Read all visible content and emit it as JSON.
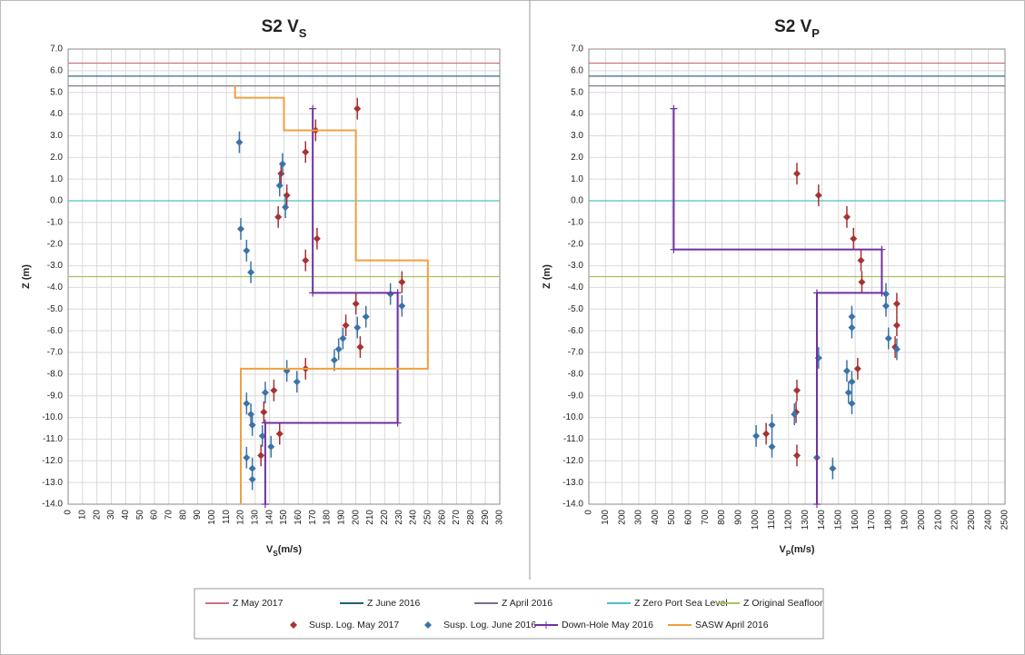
{
  "chart_data": [
    {
      "type": "scatter",
      "title": [
        "S2 V",
        "S"
      ],
      "xlabel": [
        "V",
        "S",
        "(m/s)"
      ],
      "ylabel": "Z (m)",
      "xlim": [
        0,
        300
      ],
      "ylim": [
        -14,
        7
      ],
      "grid": true,
      "legend": "bottom",
      "xticks": [
        0,
        10,
        20,
        30,
        40,
        50,
        60,
        70,
        80,
        90,
        100,
        110,
        120,
        130,
        140,
        150,
        160,
        170,
        180,
        190,
        200,
        210,
        220,
        230,
        240,
        250,
        260,
        270,
        280,
        290,
        300
      ],
      "yticks": [
        {
          "value": 7,
          "label": "7.0"
        },
        {
          "value": 6,
          "label": "6.0"
        },
        {
          "value": 5,
          "label": "5.0"
        },
        {
          "value": 4,
          "label": "4.0"
        },
        {
          "value": 3,
          "label": "3.0"
        },
        {
          "value": 2,
          "label": "2.0"
        },
        {
          "value": 1,
          "label": "1.0"
        },
        {
          "value": 0,
          "label": "0.0"
        },
        {
          "value": -1,
          "label": "-1.0"
        },
        {
          "value": -2,
          "label": "-2.0"
        },
        {
          "value": -3,
          "label": "-3.0"
        },
        {
          "value": -4,
          "label": "-4.0"
        },
        {
          "value": -5,
          "label": "-5.0"
        },
        {
          "value": -6,
          "label": "-6.0"
        },
        {
          "value": -7,
          "label": "-7.0"
        },
        {
          "value": -8,
          "label": "-8.0"
        },
        {
          "value": -9,
          "label": "-9.0"
        },
        {
          "value": -10,
          "label": "-10.0"
        },
        {
          "value": -11,
          "label": "-11.0"
        },
        {
          "value": -12,
          "label": "-12.0"
        },
        {
          "value": -13,
          "label": "-13.0"
        },
        {
          "value": -14,
          "label": "-14.0"
        }
      ],
      "series": [
        {
          "name": "Z May 2017",
          "color": "#c9737f",
          "style": "line",
          "x": [
            0,
            300
          ],
          "values": [
            6.35,
            6.35
          ]
        },
        {
          "name": "Z June 2016",
          "color": "#1f5f7a",
          "style": "line",
          "x": [
            0,
            300
          ],
          "values": [
            5.75,
            5.75
          ]
        },
        {
          "name": "Z April 2016",
          "color": "#7f6a8a",
          "style": "line",
          "x": [
            0,
            300
          ],
          "values": [
            5.3,
            5.3
          ]
        },
        {
          "name": "Z Zero Port Sea Level",
          "color": "#4bc0c8",
          "style": "line",
          "x": [
            0,
            300
          ],
          "values": [
            0,
            0
          ]
        },
        {
          "name": "Z Original Seafloor",
          "color": "#a8c060",
          "style": "line",
          "x": [
            0,
            300
          ],
          "values": [
            -3.5,
            -3.5
          ]
        },
        {
          "name": "Susp. Log. May 2017",
          "color": "#a83232",
          "style": "markers",
          "marker": "diamond",
          "error": 0.5,
          "x": [
            201,
            172,
            165,
            148,
            152,
            146,
            173,
            165,
            232,
            200,
            193,
            203,
            165,
            143,
            136,
            147,
            134
          ],
          "values": [
            4.25,
            3.25,
            2.25,
            1.25,
            0.25,
            -0.75,
            -1.75,
            -2.75,
            -3.75,
            -4.75,
            -5.75,
            -6.75,
            -7.75,
            -8.75,
            -9.75,
            -10.75,
            -11.75
          ]
        },
        {
          "name": "Susp. Log. June 2016",
          "color": "#3b73a8",
          "style": "markers",
          "marker": "diamond",
          "error": 0.5,
          "x": [
            119,
            149,
            147,
            151,
            120,
            124,
            127,
            224,
            232,
            207,
            201,
            191,
            188,
            185,
            152,
            159,
            137,
            124,
            127,
            128,
            135,
            141,
            124,
            128,
            128
          ],
          "values": [
            2.7,
            1.7,
            0.7,
            -0.3,
            -1.3,
            -2.3,
            -3.3,
            -4.3,
            -4.85,
            -5.35,
            -5.85,
            -6.35,
            -6.85,
            -7.35,
            -7.85,
            -8.35,
            -8.85,
            -9.35,
            -9.85,
            -10.35,
            -10.85,
            -11.35,
            -11.85,
            -12.35,
            -12.85
          ]
        },
        {
          "name": "Down-Hole May 2016",
          "color": "#7030a0",
          "style": "line+markers",
          "marker": "plus",
          "x": [
            170,
            170,
            229,
            229,
            137,
            137
          ],
          "values": [
            4.25,
            -4.25,
            -4.25,
            -10.25,
            -10.25,
            -14
          ]
        },
        {
          "name": "SASW April 2016",
          "color": "#f0a040",
          "style": "line",
          "x": [
            116,
            116,
            150,
            150,
            200,
            200,
            250,
            250,
            120,
            120
          ],
          "values": [
            5.3,
            4.75,
            4.75,
            3.25,
            3.25,
            -2.75,
            -2.75,
            -7.75,
            -7.75,
            -14
          ]
        }
      ]
    },
    {
      "type": "scatter",
      "title": [
        "S2 V",
        "P"
      ],
      "xlabel": [
        "V",
        "P",
        "(m/s)"
      ],
      "ylabel": "Z (m)",
      "xlim": [
        0,
        2500
      ],
      "ylim": [
        -14,
        7
      ],
      "grid": true,
      "xticks": [
        0,
        100,
        200,
        300,
        400,
        500,
        600,
        700,
        800,
        900,
        1000,
        1100,
        1200,
        1300,
        1400,
        1500,
        1600,
        1700,
        1800,
        1900,
        2000,
        2100,
        2200,
        2300,
        2400,
        2500
      ],
      "yticks": [
        {
          "value": 7,
          "label": "7.0"
        },
        {
          "value": 6,
          "label": "6.0"
        },
        {
          "value": 5,
          "label": "5.0"
        },
        {
          "value": 4,
          "label": "4.0"
        },
        {
          "value": 3,
          "label": "3.0"
        },
        {
          "value": 2,
          "label": "2.0"
        },
        {
          "value": 1,
          "label": "1.0"
        },
        {
          "value": 0,
          "label": "0.0"
        },
        {
          "value": -1,
          "label": "-1.0"
        },
        {
          "value": -2,
          "label": "-2.0"
        },
        {
          "value": -3,
          "label": "-3.0"
        },
        {
          "value": -4,
          "label": "-4.0"
        },
        {
          "value": -5,
          "label": "-5.0"
        },
        {
          "value": -6,
          "label": "-6.0"
        },
        {
          "value": -7,
          "label": "-7.0"
        },
        {
          "value": -8,
          "label": "-8.0"
        },
        {
          "value": -9,
          "label": "-9.0"
        },
        {
          "value": -10,
          "label": "-10.0"
        },
        {
          "value": -11,
          "label": "-11.0"
        },
        {
          "value": -12,
          "label": "-12.0"
        },
        {
          "value": -13,
          "label": "-13.0"
        },
        {
          "value": -14,
          "label": "-14.0"
        }
      ],
      "series": [
        {
          "color": "#c9737f",
          "style": "line",
          "x": [
            0,
            2500
          ],
          "values": [
            6.35,
            6.35
          ]
        },
        {
          "color": "#1f5f7a",
          "style": "line",
          "x": [
            0,
            2500
          ],
          "values": [
            5.75,
            5.75
          ]
        },
        {
          "color": "#7f6a8a",
          "style": "line",
          "x": [
            0,
            2500
          ],
          "values": [
            5.3,
            5.3
          ]
        },
        {
          "color": "#4bc0c8",
          "style": "line",
          "x": [
            0,
            2500
          ],
          "values": [
            0,
            0
          ]
        },
        {
          "color": "#a8c060",
          "style": "line",
          "x": [
            0,
            2500
          ],
          "values": [
            -3.5,
            -3.5
          ]
        },
        {
          "color": "#a83232",
          "style": "markers",
          "marker": "diamond",
          "error": 0.5,
          "x": [
            1250,
            1380,
            1550,
            1590,
            1635,
            1640,
            1850,
            1850,
            1840,
            1615,
            1250,
            1245,
            1065,
            1250
          ],
          "values": [
            1.25,
            0.25,
            -0.75,
            -1.75,
            -2.75,
            -3.75,
            -4.75,
            -5.75,
            -6.75,
            -7.75,
            -8.75,
            -9.75,
            -10.75,
            -11.75
          ]
        },
        {
          "color": "#3b73a8",
          "style": "markers",
          "marker": "diamond",
          "error": 0.5,
          "x": [
            1785,
            1785,
            1580,
            1580,
            1800,
            1850,
            1380,
            1550,
            1580,
            1560,
            1580,
            1235,
            1100,
            1005,
            1100,
            1370,
            1465
          ],
          "values": [
            -4.3,
            -4.85,
            -5.35,
            -5.85,
            -6.35,
            -6.85,
            -7.25,
            -7.85,
            -8.35,
            -8.85,
            -9.35,
            -9.85,
            -10.35,
            -10.85,
            -11.35,
            -11.85,
            -12.35
          ]
        },
        {
          "color": "#7030a0",
          "style": "line+markers",
          "marker": "plus",
          "x": [
            510,
            510,
            1760,
            1760,
            1370,
            1370
          ],
          "values": [
            4.25,
            -2.25,
            -2.25,
            -4.25,
            -4.25,
            -14
          ]
        }
      ]
    }
  ]
}
